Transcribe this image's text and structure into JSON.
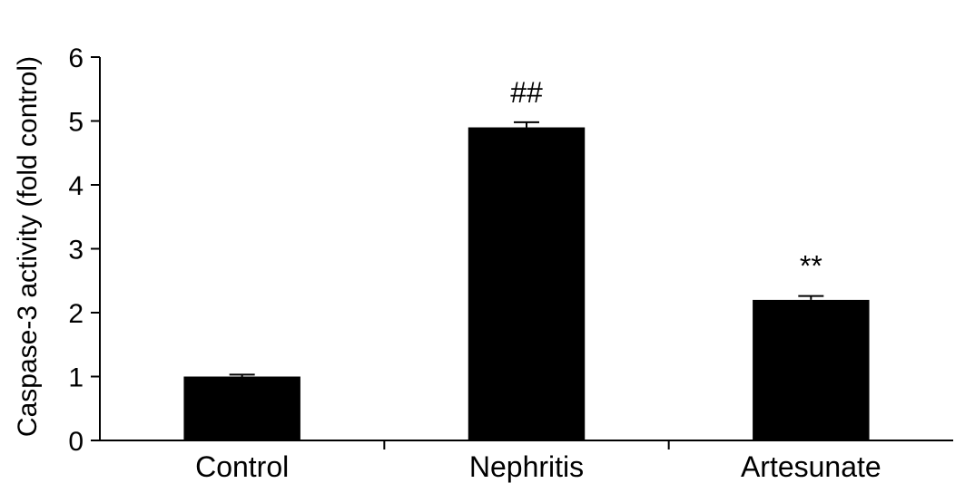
{
  "chart_data": {
    "type": "bar",
    "title": "",
    "xlabel": "",
    "ylabel": "Caspase-3 activity (fold control)",
    "ylim": [
      0,
      6
    ],
    "yticks": [
      0,
      1,
      2,
      3,
      4,
      5,
      6
    ],
    "categories": [
      "Control",
      "Nephritis",
      "Artesunate"
    ],
    "values": [
      1.0,
      4.9,
      2.2
    ],
    "errors": [
      0.03,
      0.08,
      0.06
    ],
    "annotations": [
      "",
      "##",
      "**"
    ],
    "bar_color": "#000000",
    "grid": false,
    "legend": "none"
  }
}
